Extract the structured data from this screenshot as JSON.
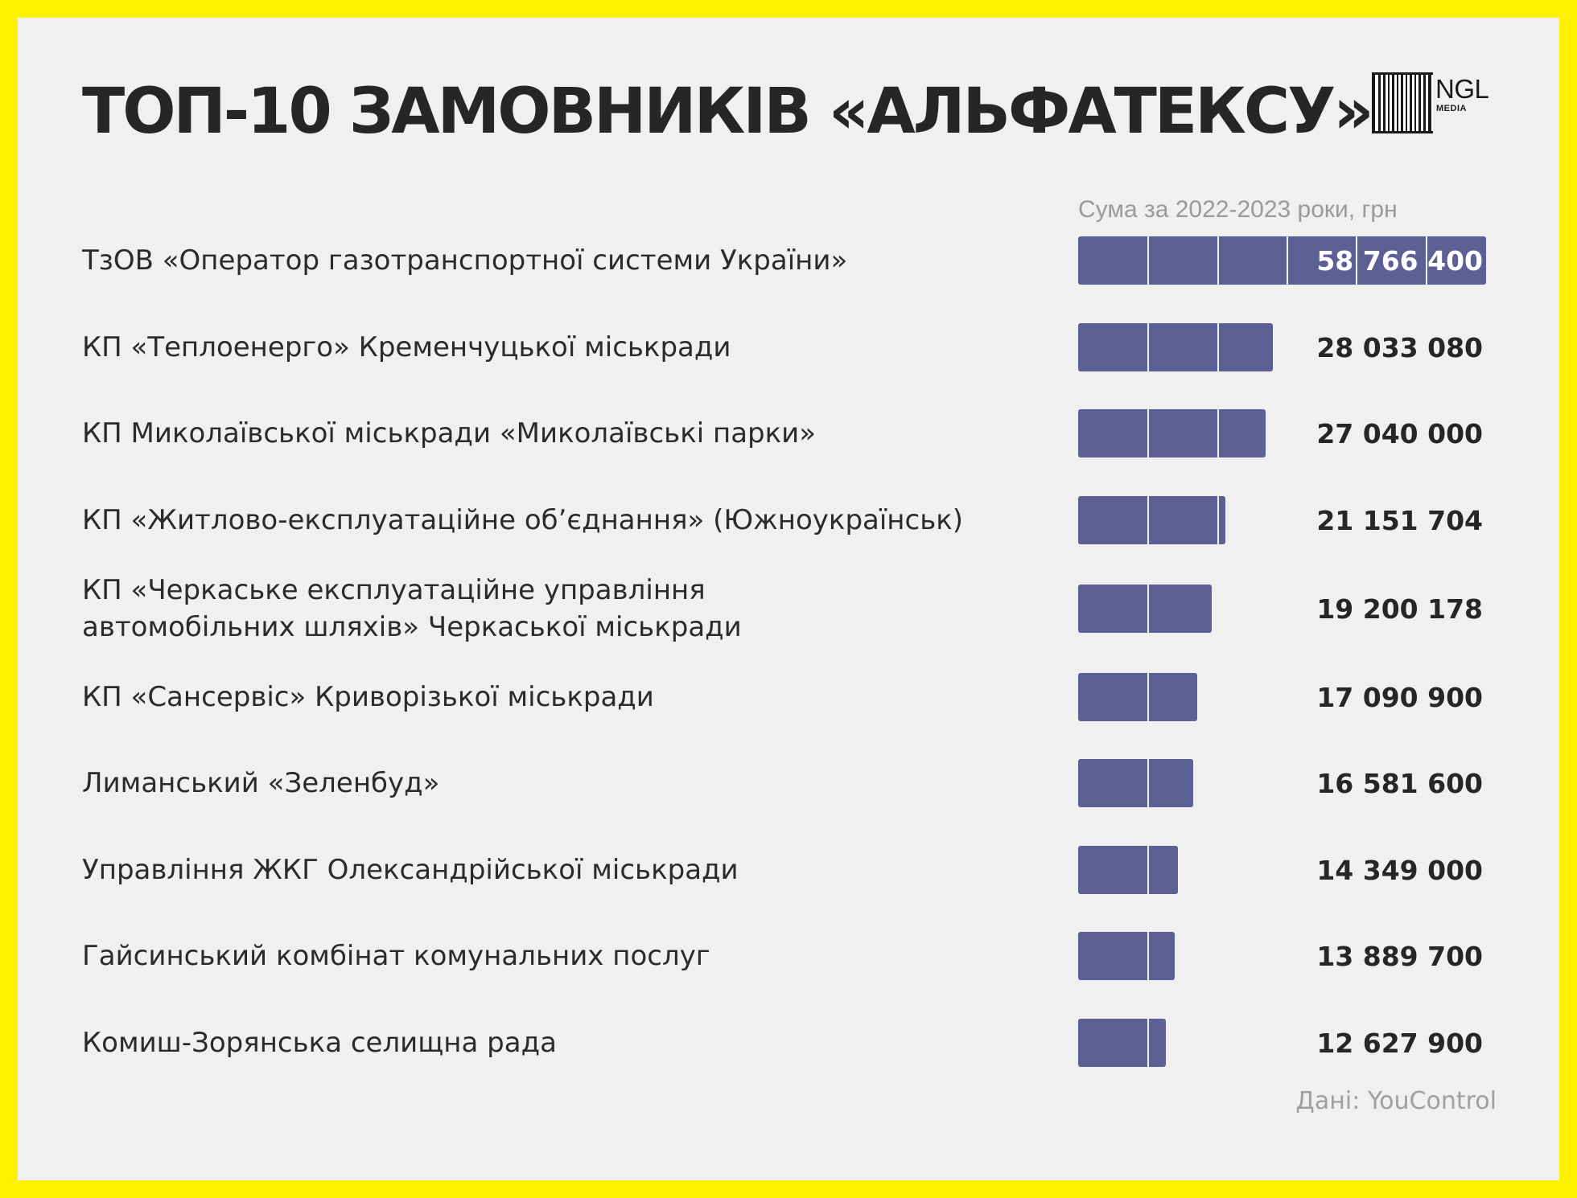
{
  "header": {
    "title": "ТОП-10 ЗАМОВНИКІВ «АЛЬФАТЕКСУ»",
    "logo_text": "NGL",
    "logo_subtext": "MEDIA"
  },
  "colors": {
    "background": "#fff200",
    "panel": "#f0f0f0",
    "bar": "#5c6094",
    "text": "#262626"
  },
  "chart_data": {
    "type": "bar",
    "orientation": "horizontal",
    "title": "ТОП-10 ЗАМОВНИКІВ «АЛЬФАТЕКСУ»",
    "subtitle": "Сума за 2022-2023 роки, грн",
    "xlabel": "",
    "ylabel": "",
    "xlim": [
      0,
      60000000
    ],
    "grid_step": 10000000,
    "grid": true,
    "legend": "none",
    "categories": [
      "ТзОВ «Оператор газотранспортної системи України»",
      "КП «Теплоенерго» Кременчуцької міськради",
      "КП Миколаївської міськради «Миколаївські парки»",
      "КП «Житлово-експлуатаційне об’єднання» (Южноукраїнськ)",
      "КП «Черкаське експлуатаційне управління автомобільних шляхів» Черкаської міськради",
      "КП «Сансервіс» Криворізької міськради",
      "Лиманський «Зеленбуд»",
      "Управління ЖКГ Олександрійської міськради",
      "Гайсинський комбінат комунальних послуг",
      "Комиш-Зорянська селищна рада"
    ],
    "values": [
      58766400,
      28033080,
      27040000,
      21151704,
      19200178,
      17090900,
      16581600,
      14349000,
      13889700,
      12627900
    ],
    "value_labels": [
      "58 766 400",
      "28 033 080",
      "27 040 000",
      "21 151 704",
      "19 200 178",
      "17 090 900",
      "16 581 600",
      "14 349 000",
      "13 889 700",
      "12 627 900"
    ]
  },
  "footer": {
    "source": "Дані: YouControl"
  }
}
